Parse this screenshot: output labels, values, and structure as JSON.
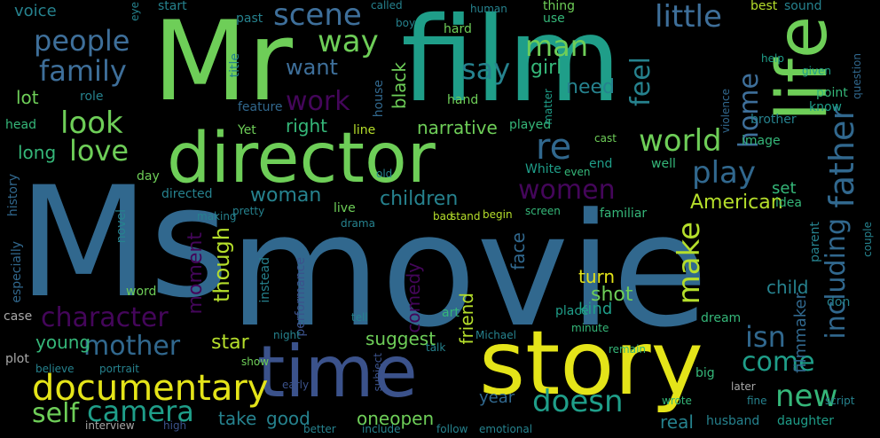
{
  "palette": {
    "purple": "#44065a",
    "indigo": "#3b528b",
    "steel": "#31688e",
    "blue": "#3e6f9a",
    "teal": "#26828e",
    "sea": "#1f9e89",
    "green": "#35b779",
    "lime": "#6ece58",
    "yellowgreen": "#b5de2b",
    "yellow": "#e4e419",
    "gray": "#a8a8a8"
  },
  "words": [
    {
      "id": "movie",
      "text": "movie",
      "color": "steel"
    },
    {
      "id": "ms",
      "text": "Ms",
      "color": "steel"
    },
    {
      "id": "film",
      "text": "film",
      "color": "sea"
    },
    {
      "id": "mr",
      "text": "Mr",
      "color": "lime"
    },
    {
      "id": "story",
      "text": "story",
      "color": "yellow"
    },
    {
      "id": "director",
      "text": "director",
      "color": "lime"
    },
    {
      "id": "life",
      "text": "life",
      "color": "lime"
    },
    {
      "id": "time",
      "text": "time",
      "color": "indigo"
    },
    {
      "id": "documentary",
      "text": "documentary",
      "color": "yellow"
    },
    {
      "id": "father",
      "text": "father",
      "color": "steel"
    },
    {
      "id": "people",
      "text": "people",
      "color": "blue"
    },
    {
      "id": "family",
      "text": "family",
      "color": "blue"
    },
    {
      "id": "scene",
      "text": "scene",
      "color": "blue"
    },
    {
      "id": "way",
      "text": "way",
      "color": "lime"
    },
    {
      "id": "man",
      "text": "man",
      "color": "lime"
    },
    {
      "id": "little",
      "text": "little",
      "color": "blue"
    },
    {
      "id": "say",
      "text": "say",
      "color": "teal"
    },
    {
      "id": "want",
      "text": "want",
      "color": "blue"
    },
    {
      "id": "girl",
      "text": "girl",
      "color": "green"
    },
    {
      "id": "feel",
      "text": "feel",
      "color": "teal"
    },
    {
      "id": "work",
      "text": "work",
      "color": "purple"
    },
    {
      "id": "look",
      "text": "look",
      "color": "lime"
    },
    {
      "id": "need",
      "text": "need",
      "color": "teal"
    },
    {
      "id": "home",
      "text": "home",
      "color": "blue"
    },
    {
      "id": "love",
      "text": "love",
      "color": "lime"
    },
    {
      "id": "world",
      "text": "world",
      "color": "lime"
    },
    {
      "id": "re",
      "text": "re",
      "color": "steel"
    },
    {
      "id": "play",
      "text": "play",
      "color": "steel"
    },
    {
      "id": "women",
      "text": "women",
      "color": "purple"
    },
    {
      "id": "children",
      "text": "children",
      "color": "teal"
    },
    {
      "id": "woman",
      "text": "woman",
      "color": "teal"
    },
    {
      "id": "american",
      "text": "American",
      "color": "yellowgreen"
    },
    {
      "id": "narrative",
      "text": "narrative",
      "color": "lime"
    },
    {
      "id": "right",
      "text": "right",
      "color": "green"
    },
    {
      "id": "character",
      "text": "character",
      "color": "purple"
    },
    {
      "id": "mother",
      "text": "mother",
      "color": "steel"
    },
    {
      "id": "make",
      "text": "make",
      "color": "yellowgreen"
    },
    {
      "id": "though",
      "text": "though",
      "color": "yellowgreen"
    },
    {
      "id": "moment",
      "text": "moment",
      "color": "purple"
    },
    {
      "id": "including",
      "text": "including",
      "color": "steel"
    },
    {
      "id": "isn",
      "text": "isn",
      "color": "steel"
    },
    {
      "id": "come",
      "text": "come",
      "color": "sea"
    },
    {
      "id": "new",
      "text": "new",
      "color": "green"
    },
    {
      "id": "doesn",
      "text": "doesn",
      "color": "sea"
    },
    {
      "id": "camera",
      "text": "camera",
      "color": "sea"
    },
    {
      "id": "self",
      "text": "self",
      "color": "lime"
    },
    {
      "id": "young",
      "text": "young",
      "color": "green"
    },
    {
      "id": "star",
      "text": "star",
      "color": "yellowgreen"
    },
    {
      "id": "suggest",
      "text": "suggest",
      "color": "lime"
    },
    {
      "id": "friend",
      "text": "friend",
      "color": "yellowgreen"
    },
    {
      "id": "comedy",
      "text": "comedy",
      "color": "purple"
    },
    {
      "id": "face",
      "text": "face",
      "color": "steel"
    },
    {
      "id": "turn",
      "text": "turn",
      "color": "yellow"
    },
    {
      "id": "shot",
      "text": "shot",
      "color": "lime"
    },
    {
      "id": "kind",
      "text": "kind",
      "color": "sea"
    },
    {
      "id": "child",
      "text": "child",
      "color": "teal"
    },
    {
      "id": "set",
      "text": "set",
      "color": "green"
    },
    {
      "id": "filmmaker",
      "text": "filmmaker",
      "color": "steel"
    },
    {
      "id": "year",
      "text": "year",
      "color": "steel"
    },
    {
      "id": "take",
      "text": "take",
      "color": "teal"
    },
    {
      "id": "good",
      "text": "good",
      "color": "teal"
    },
    {
      "id": "oneopen",
      "text": "oneopen",
      "color": "lime"
    },
    {
      "id": "real",
      "text": "real",
      "color": "teal"
    },
    {
      "id": "voice",
      "text": "voice",
      "color": "teal"
    },
    {
      "id": "lot",
      "text": "lot",
      "color": "lime"
    },
    {
      "id": "long",
      "text": "long",
      "color": "green"
    },
    {
      "id": "black",
      "text": "black",
      "color": "lime"
    },
    {
      "id": "feature",
      "text": "feature",
      "color": "steel"
    },
    {
      "id": "role",
      "text": "role",
      "color": "teal"
    },
    {
      "id": "head",
      "text": "head",
      "color": "green"
    },
    {
      "id": "hand",
      "text": "hand",
      "color": "lime"
    },
    {
      "id": "hard",
      "text": "hard",
      "color": "lime"
    },
    {
      "id": "thing",
      "text": "thing",
      "color": "lime"
    },
    {
      "id": "best",
      "text": "best",
      "color": "yellowgreen"
    },
    {
      "id": "sound",
      "text": "sound",
      "color": "teal"
    },
    {
      "id": "use",
      "text": "use",
      "color": "green"
    },
    {
      "id": "start",
      "text": "start",
      "color": "teal"
    },
    {
      "id": "past",
      "text": "past",
      "color": "teal"
    },
    {
      "id": "point",
      "text": "point",
      "color": "green"
    },
    {
      "id": "brother",
      "text": "brother",
      "color": "teal"
    },
    {
      "id": "played",
      "text": "played",
      "color": "green"
    },
    {
      "id": "line",
      "text": "line",
      "color": "yellowgreen"
    },
    {
      "id": "image",
      "text": "image",
      "color": "green"
    },
    {
      "id": "end",
      "text": "end",
      "color": "sea"
    },
    {
      "id": "well",
      "text": "well",
      "color": "green"
    },
    {
      "id": "live",
      "text": "live",
      "color": "lime"
    },
    {
      "id": "familiar",
      "text": "familiar",
      "color": "green"
    },
    {
      "id": "idea",
      "text": "idea",
      "color": "green"
    },
    {
      "id": "directed",
      "text": "directed",
      "color": "teal"
    },
    {
      "id": "day",
      "text": "day",
      "color": "lime"
    },
    {
      "id": "word",
      "text": "word",
      "color": "lime"
    },
    {
      "id": "white",
      "text": "White",
      "color": "sea"
    },
    {
      "id": "place",
      "text": "place",
      "color": "sea"
    },
    {
      "id": "dream",
      "text": "dream",
      "color": "green"
    },
    {
      "id": "daughter",
      "text": "daughter",
      "color": "sea"
    },
    {
      "id": "husband",
      "text": "husband",
      "color": "teal"
    },
    {
      "id": "big",
      "text": "big",
      "color": "green"
    },
    {
      "id": "yet",
      "text": "Yet",
      "color": "lime"
    },
    {
      "id": "title",
      "text": "title",
      "color": "teal"
    },
    {
      "id": "house",
      "text": "house",
      "color": "steel"
    },
    {
      "id": "know",
      "text": "know",
      "color": "sea"
    },
    {
      "id": "parent",
      "text": "parent",
      "color": "teal"
    },
    {
      "id": "don",
      "text": "don",
      "color": "teal"
    },
    {
      "id": "instead",
      "text": "instead",
      "color": "teal"
    },
    {
      "id": "performance",
      "text": "performance",
      "color": "indigo"
    },
    {
      "id": "art",
      "text": "art",
      "color": "green"
    },
    {
      "id": "michael",
      "text": "Michael",
      "color": "teal"
    },
    {
      "id": "history",
      "text": "history",
      "color": "steel"
    },
    {
      "id": "especially",
      "text": "especially",
      "color": "steel"
    },
    {
      "id": "novel",
      "text": "novel",
      "color": "teal"
    },
    {
      "id": "case",
      "text": "case",
      "color": "gray"
    },
    {
      "id": "plot",
      "text": "plot",
      "color": "gray"
    },
    {
      "id": "interview",
      "text": "interview",
      "color": "gray"
    },
    {
      "id": "show",
      "text": "show",
      "color": "lime"
    },
    {
      "id": "making",
      "text": "making",
      "color": "teal"
    },
    {
      "id": "pretty",
      "text": "pretty",
      "color": "teal"
    },
    {
      "id": "violence",
      "text": "violence",
      "color": "steel"
    },
    {
      "id": "question",
      "text": "question",
      "color": "steel"
    },
    {
      "id": "given",
      "text": "given",
      "color": "sea"
    },
    {
      "id": "help",
      "text": "help",
      "color": "sea"
    },
    {
      "id": "called",
      "text": "called",
      "color": "teal"
    },
    {
      "id": "boy",
      "text": "boy",
      "color": "teal"
    },
    {
      "id": "human",
      "text": "human",
      "color": "teal"
    },
    {
      "id": "eye",
      "text": "eye",
      "color": "teal"
    },
    {
      "id": "matter",
      "text": "matter",
      "color": "sea"
    },
    {
      "id": "cast",
      "text": "cast",
      "color": "lime"
    },
    {
      "id": "begin",
      "text": "begin",
      "color": "yellowgreen"
    },
    {
      "id": "subject",
      "text": "subject",
      "color": "indigo"
    },
    {
      "id": "early",
      "text": "early",
      "color": "indigo"
    },
    {
      "id": "remain",
      "text": "remain",
      "color": "green"
    },
    {
      "id": "minute",
      "text": "minute",
      "color": "green"
    },
    {
      "id": "wrote",
      "text": "wrote",
      "color": "green"
    },
    {
      "id": "later",
      "text": "later",
      "color": "gray"
    },
    {
      "id": "follow",
      "text": "follow",
      "color": "teal"
    },
    {
      "id": "emotional",
      "text": "emotional",
      "color": "teal"
    },
    {
      "id": "include",
      "text": "include",
      "color": "teal"
    },
    {
      "id": "better",
      "text": "better",
      "color": "teal"
    },
    {
      "id": "high",
      "text": "high",
      "color": "indigo"
    },
    {
      "id": "portrait",
      "text": "portrait",
      "color": "teal"
    },
    {
      "id": "believe",
      "text": "believe",
      "color": "teal"
    },
    {
      "id": "night",
      "text": "night",
      "color": "teal"
    },
    {
      "id": "talk",
      "text": "talk",
      "color": "teal"
    },
    {
      "id": "screen",
      "text": "screen",
      "color": "green"
    },
    {
      "id": "drama",
      "text": "drama",
      "color": "teal"
    },
    {
      "id": "even",
      "text": "even",
      "color": "green"
    },
    {
      "id": "old",
      "text": "old",
      "color": "teal"
    },
    {
      "id": "bad",
      "text": "bad",
      "color": "yellowgreen"
    },
    {
      "id": "stand",
      "text": "stand",
      "color": "yellowgreen"
    },
    {
      "id": "tell",
      "text": "tell",
      "color": "teal"
    },
    {
      "id": "couple",
      "text": "couple",
      "color": "teal"
    },
    {
      "id": "script",
      "text": "script",
      "color": "teal"
    },
    {
      "id": "fine",
      "text": "fine",
      "color": "teal"
    }
  ]
}
